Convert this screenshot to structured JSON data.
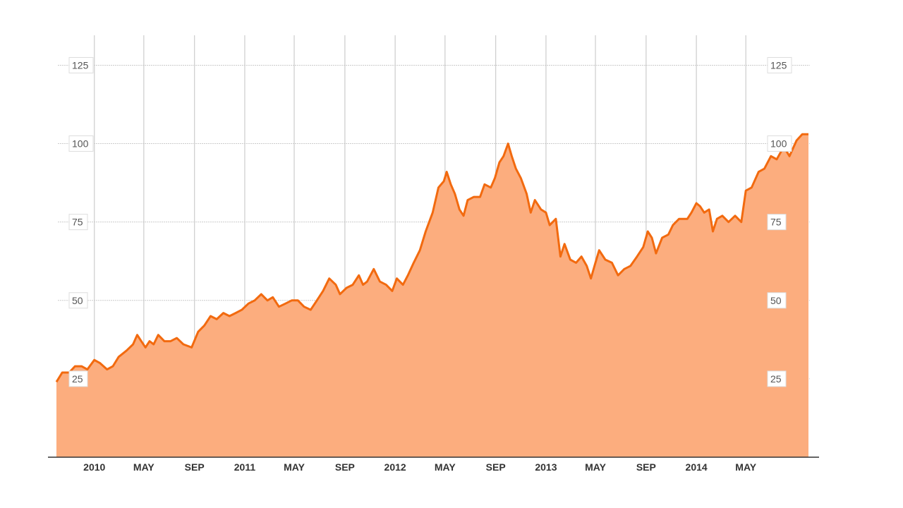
{
  "chart_data": {
    "type": "area",
    "title": "",
    "xlabel": "",
    "ylabel": "",
    "x_range": [
      "2009-10-01",
      "2014-09-30"
    ],
    "ylim": [
      0,
      135
    ],
    "grid": true,
    "legend": "none",
    "y_axes": [
      "left",
      "right"
    ],
    "y_ticks": [
      {
        "value": 25,
        "label": "25"
      },
      {
        "value": 50,
        "label": "50"
      },
      {
        "value": 75,
        "label": "75"
      },
      {
        "value": 100,
        "label": "100"
      },
      {
        "value": 125,
        "label": "125"
      }
    ],
    "x_ticks": [
      {
        "date": "2010-01-01",
        "label": "2010"
      },
      {
        "date": "2010-05-01",
        "label": "MAY"
      },
      {
        "date": "2010-09-01",
        "label": "SEP"
      },
      {
        "date": "2011-01-01",
        "label": "2011"
      },
      {
        "date": "2011-05-01",
        "label": "MAY"
      },
      {
        "date": "2011-09-01",
        "label": "SEP"
      },
      {
        "date": "2012-01-01",
        "label": "2012"
      },
      {
        "date": "2012-05-01",
        "label": "MAY"
      },
      {
        "date": "2012-09-01",
        "label": "SEP"
      },
      {
        "date": "2013-01-01",
        "label": "2013"
      },
      {
        "date": "2013-05-01",
        "label": "MAY"
      },
      {
        "date": "2013-09-01",
        "label": "SEP"
      },
      {
        "date": "2014-01-01",
        "label": "2014"
      },
      {
        "date": "2014-05-01",
        "label": "MAY"
      }
    ],
    "colors": {
      "line": "#f26a0f",
      "fill": "#fcad7e",
      "grid": "#cccccc",
      "axis": "#333333"
    },
    "series": [
      {
        "points": [
          [
            "2009-10-01",
            24
          ],
          [
            "2009-10-15",
            27
          ],
          [
            "2009-11-01",
            27
          ],
          [
            "2009-11-15",
            29
          ],
          [
            "2009-12-01",
            29
          ],
          [
            "2009-12-15",
            28
          ],
          [
            "2010-01-01",
            31
          ],
          [
            "2010-01-15",
            30
          ],
          [
            "2010-02-01",
            28
          ],
          [
            "2010-02-15",
            29
          ],
          [
            "2010-03-01",
            32
          ],
          [
            "2010-03-20",
            34
          ],
          [
            "2010-04-05",
            36
          ],
          [
            "2010-04-15",
            39
          ],
          [
            "2010-04-25",
            37
          ],
          [
            "2010-05-05",
            35
          ],
          [
            "2010-05-15",
            37
          ],
          [
            "2010-05-25",
            36
          ],
          [
            "2010-06-05",
            39
          ],
          [
            "2010-06-20",
            37
          ],
          [
            "2010-07-05",
            37
          ],
          [
            "2010-07-20",
            38
          ],
          [
            "2010-08-05",
            36
          ],
          [
            "2010-08-25",
            35
          ],
          [
            "2010-09-10",
            40
          ],
          [
            "2010-09-25",
            42
          ],
          [
            "2010-10-10",
            45
          ],
          [
            "2010-10-25",
            44
          ],
          [
            "2010-11-10",
            46
          ],
          [
            "2010-11-25",
            45
          ],
          [
            "2010-12-10",
            46
          ],
          [
            "2010-12-25",
            47
          ],
          [
            "2011-01-10",
            49
          ],
          [
            "2011-01-25",
            50
          ],
          [
            "2011-02-10",
            52
          ],
          [
            "2011-02-25",
            50
          ],
          [
            "2011-03-10",
            51
          ],
          [
            "2011-03-25",
            48
          ],
          [
            "2011-04-10",
            49
          ],
          [
            "2011-04-25",
            50
          ],
          [
            "2011-05-10",
            50
          ],
          [
            "2011-05-25",
            48
          ],
          [
            "2011-06-10",
            47
          ],
          [
            "2011-06-25",
            50
          ],
          [
            "2011-07-10",
            53
          ],
          [
            "2011-07-25",
            57
          ],
          [
            "2011-08-10",
            55
          ],
          [
            "2011-08-20",
            52
          ],
          [
            "2011-09-05",
            54
          ],
          [
            "2011-09-20",
            55
          ],
          [
            "2011-10-05",
            58
          ],
          [
            "2011-10-15",
            55
          ],
          [
            "2011-10-25",
            56
          ],
          [
            "2011-11-10",
            60
          ],
          [
            "2011-11-25",
            56
          ],
          [
            "2011-12-10",
            55
          ],
          [
            "2011-12-25",
            53
          ],
          [
            "2012-01-05",
            57
          ],
          [
            "2012-01-20",
            55
          ],
          [
            "2012-02-01",
            58
          ],
          [
            "2012-02-15",
            62
          ],
          [
            "2012-03-01",
            66
          ],
          [
            "2012-03-15",
            72
          ],
          [
            "2012-04-01",
            78
          ],
          [
            "2012-04-15",
            86
          ],
          [
            "2012-04-28",
            88
          ],
          [
            "2012-05-05",
            91
          ],
          [
            "2012-05-15",
            87
          ],
          [
            "2012-05-25",
            84
          ],
          [
            "2012-06-05",
            79
          ],
          [
            "2012-06-15",
            77
          ],
          [
            "2012-06-25",
            82
          ],
          [
            "2012-07-10",
            83
          ],
          [
            "2012-07-25",
            83
          ],
          [
            "2012-08-05",
            87
          ],
          [
            "2012-08-20",
            86
          ],
          [
            "2012-08-30",
            89
          ],
          [
            "2012-09-10",
            94
          ],
          [
            "2012-09-20",
            96
          ],
          [
            "2012-10-01",
            100
          ],
          [
            "2012-10-10",
            96
          ],
          [
            "2012-10-20",
            92
          ],
          [
            "2012-11-01",
            89
          ],
          [
            "2012-11-15",
            84
          ],
          [
            "2012-11-25",
            78
          ],
          [
            "2012-12-05",
            82
          ],
          [
            "2012-12-20",
            79
          ],
          [
            "2013-01-01",
            78
          ],
          [
            "2013-01-10",
            74
          ],
          [
            "2013-01-25",
            76
          ],
          [
            "2013-02-05",
            64
          ],
          [
            "2013-02-15",
            68
          ],
          [
            "2013-03-01",
            63
          ],
          [
            "2013-03-15",
            62
          ],
          [
            "2013-03-28",
            64
          ],
          [
            "2013-04-10",
            61
          ],
          [
            "2013-04-20",
            57
          ],
          [
            "2013-05-01",
            62
          ],
          [
            "2013-05-10",
            66
          ],
          [
            "2013-05-25",
            63
          ],
          [
            "2013-06-10",
            62
          ],
          [
            "2013-06-25",
            58
          ],
          [
            "2013-07-10",
            60
          ],
          [
            "2013-07-25",
            61
          ],
          [
            "2013-08-10",
            64
          ],
          [
            "2013-08-25",
            67
          ],
          [
            "2013-09-05",
            72
          ],
          [
            "2013-09-15",
            70
          ],
          [
            "2013-09-25",
            65
          ],
          [
            "2013-10-10",
            70
          ],
          [
            "2013-10-25",
            71
          ],
          [
            "2013-11-05",
            74
          ],
          [
            "2013-11-20",
            76
          ],
          [
            "2013-12-10",
            76
          ],
          [
            "2013-12-20",
            78
          ],
          [
            "2014-01-01",
            81
          ],
          [
            "2014-01-10",
            80
          ],
          [
            "2014-01-20",
            78
          ],
          [
            "2014-02-01",
            79
          ],
          [
            "2014-02-10",
            72
          ],
          [
            "2014-02-20",
            76
          ],
          [
            "2014-03-05",
            77
          ],
          [
            "2014-03-20",
            75
          ],
          [
            "2014-04-05",
            77
          ],
          [
            "2014-04-20",
            75
          ],
          [
            "2014-05-01",
            85
          ],
          [
            "2014-05-15",
            86
          ],
          [
            "2014-06-01",
            91
          ],
          [
            "2014-06-15",
            92
          ],
          [
            "2014-07-01",
            96
          ],
          [
            "2014-07-15",
            95
          ],
          [
            "2014-08-01",
            99
          ],
          [
            "2014-08-15",
            96
          ],
          [
            "2014-09-01",
            101
          ],
          [
            "2014-09-15",
            103
          ],
          [
            "2014-09-30",
            103
          ]
        ]
      }
    ]
  }
}
